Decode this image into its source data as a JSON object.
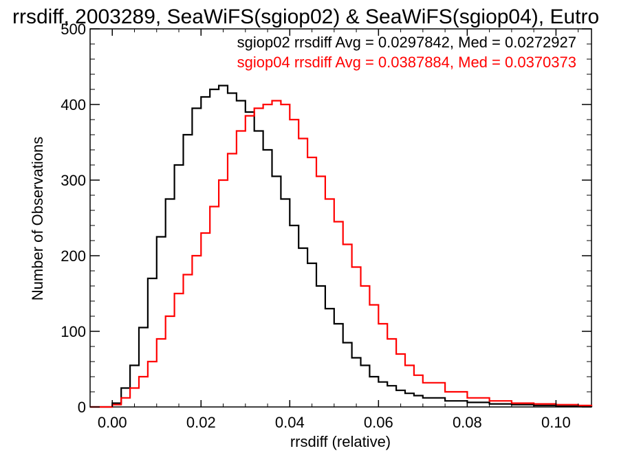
{
  "chart_data": {
    "type": "line",
    "title": "rrsdiff, 2003289, SeaWiFS(sgiop02) & SeaWiFS(sgiop04), Eutro",
    "xlabel": "rrsdiff (relative)",
    "ylabel": "Number of Observations",
    "xlim": [
      -0.005,
      0.108
    ],
    "ylim": [
      0,
      500
    ],
    "xticks": [
      0.0,
      0.02,
      0.04,
      0.06,
      0.08,
      0.1
    ],
    "xtick_labels": [
      "0.00",
      "0.02",
      "0.04",
      "0.06",
      "0.08",
      "0.10"
    ],
    "yticks": [
      0,
      100,
      200,
      300,
      400,
      500
    ],
    "ytick_labels": [
      "0",
      "100",
      "200",
      "300",
      "400",
      "500"
    ],
    "grid": false,
    "legend_position": "top-right",
    "series": [
      {
        "name": "sgiop02",
        "color": "#000000",
        "annotation": "sgiop02 rrsdiff Avg = 0.0297842, Med = 0.0272927",
        "x": [
          -0.005,
          0.0,
          0.002,
          0.004,
          0.006,
          0.008,
          0.01,
          0.012,
          0.014,
          0.016,
          0.018,
          0.02,
          0.022,
          0.024,
          0.026,
          0.028,
          0.03,
          0.032,
          0.034,
          0.036,
          0.038,
          0.04,
          0.042,
          0.044,
          0.046,
          0.048,
          0.05,
          0.052,
          0.054,
          0.056,
          0.058,
          0.06,
          0.062,
          0.064,
          0.066,
          0.068,
          0.07,
          0.075,
          0.08,
          0.085,
          0.09,
          0.095,
          0.1,
          0.105,
          0.108
        ],
        "y": [
          0,
          5,
          25,
          55,
          105,
          170,
          225,
          275,
          320,
          360,
          395,
          410,
          420,
          425,
          415,
          405,
          390,
          365,
          340,
          305,
          275,
          240,
          210,
          190,
          160,
          130,
          110,
          85,
          65,
          55,
          40,
          33,
          28,
          22,
          18,
          15,
          12,
          8,
          6,
          4,
          3,
          2,
          1,
          1,
          0
        ]
      },
      {
        "name": "sgiop04",
        "color": "#ff0000",
        "annotation": "sgiop04 rrsdiff Avg = 0.0387884, Med = 0.0370373",
        "x": [
          -0.005,
          0.0,
          0.002,
          0.004,
          0.006,
          0.008,
          0.01,
          0.012,
          0.014,
          0.016,
          0.018,
          0.02,
          0.022,
          0.024,
          0.026,
          0.028,
          0.03,
          0.032,
          0.034,
          0.036,
          0.038,
          0.04,
          0.042,
          0.044,
          0.046,
          0.048,
          0.05,
          0.052,
          0.054,
          0.056,
          0.058,
          0.06,
          0.062,
          0.064,
          0.066,
          0.068,
          0.07,
          0.075,
          0.08,
          0.085,
          0.09,
          0.095,
          0.1,
          0.105,
          0.108
        ],
        "y": [
          0,
          3,
          12,
          25,
          40,
          60,
          90,
          120,
          150,
          175,
          200,
          230,
          265,
          300,
          335,
          365,
          385,
          395,
          400,
          405,
          400,
          380,
          355,
          330,
          305,
          275,
          245,
          215,
          185,
          160,
          135,
          110,
          90,
          70,
          55,
          42,
          32,
          20,
          12,
          8,
          5,
          4,
          3,
          2,
          1
        ]
      }
    ]
  }
}
